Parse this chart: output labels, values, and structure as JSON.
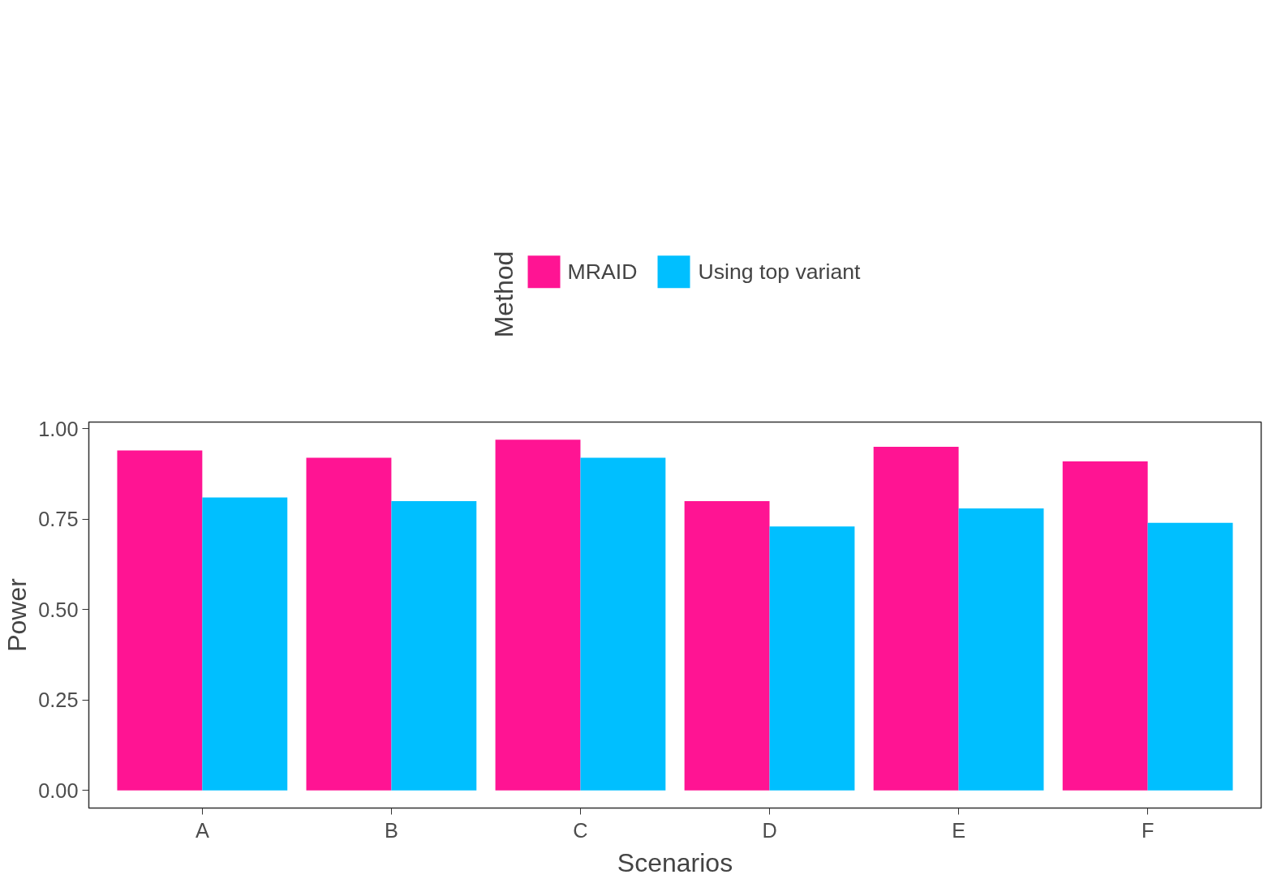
{
  "chart_data": {
    "type": "bar",
    "xlabel": "Scenarios",
    "ylabel": "Power",
    "legend_title": "Method",
    "categories": [
      "A",
      "B",
      "C",
      "D",
      "E",
      "F"
    ],
    "series": [
      {
        "name": "MRAID",
        "color": "#ff1493",
        "values": [
          0.94,
          0.92,
          0.97,
          0.8,
          0.95,
          0.91
        ]
      },
      {
        "name": "Using top variant",
        "color": "#00bfff",
        "values": [
          0.81,
          0.8,
          0.92,
          0.73,
          0.78,
          0.74
        ]
      }
    ],
    "ylim": [
      -0.0485,
      1.0185
    ],
    "yticks": [
      {
        "value": 0,
        "label": "0.00"
      },
      {
        "value": 0.25,
        "label": "0.25"
      },
      {
        "value": 0.5,
        "label": "0.50"
      },
      {
        "value": 0.75,
        "label": "0.75"
      },
      {
        "value": 1,
        "label": "1.00"
      }
    ],
    "grid": false,
    "legend": "top"
  }
}
